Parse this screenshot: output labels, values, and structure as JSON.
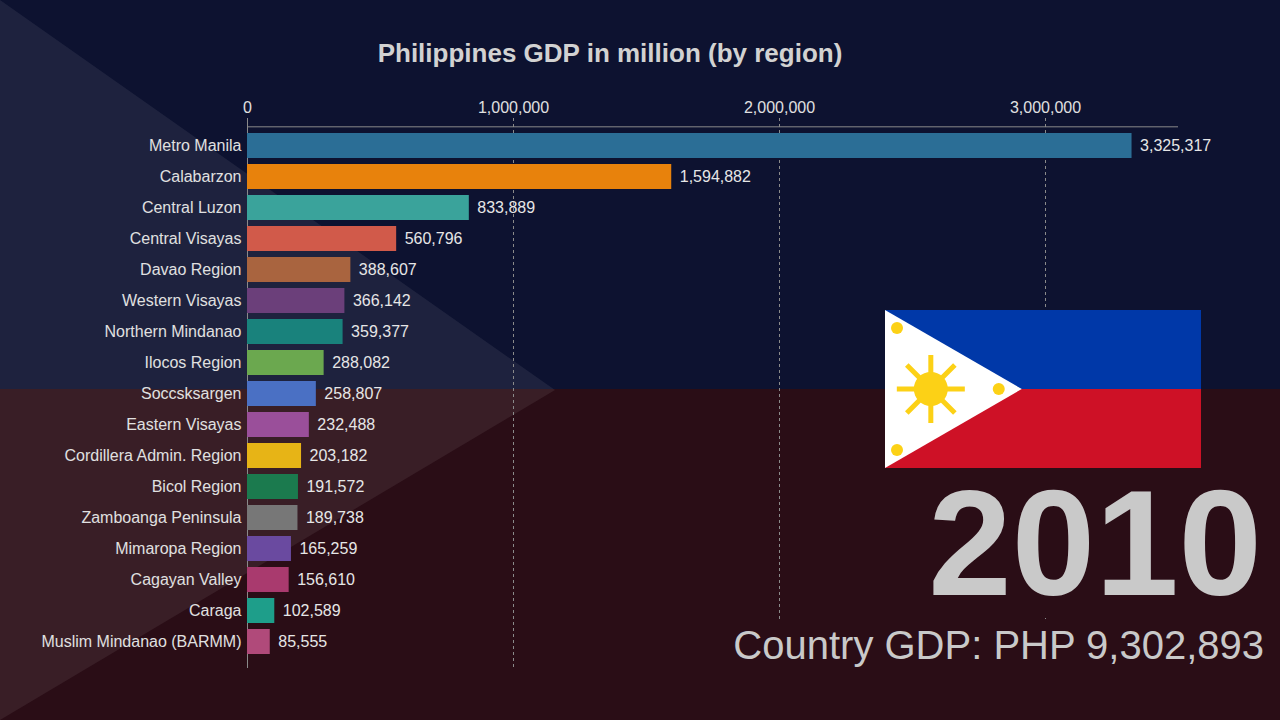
{
  "chart_data": {
    "type": "bar",
    "orientation": "horizontal",
    "title": "Philippines GDP in million (by region)",
    "categories": [
      "Metro Manila",
      "Calabarzon",
      "Central Luzon",
      "Central Visayas",
      "Davao Region",
      "Western Visayas",
      "Northern Mindanao",
      "Ilocos Region",
      "Soccsksargen",
      "Eastern Visayas",
      "Cordillera Admin. Region",
      "Bicol Region",
      "Zamboanga Peninsula",
      "Mimaropa Region",
      "Cagayan Valley",
      "Caraga",
      "Muslim Mindanao (BARMM)"
    ],
    "values": [
      3325317,
      1594882,
      833889,
      560796,
      388607,
      366142,
      359377,
      288082,
      258807,
      232488,
      203182,
      191572,
      189738,
      165259,
      156610,
      102589,
      85555
    ],
    "value_labels": [
      "3,325,317",
      "1,594,882",
      "833,889",
      "560,796",
      "388,607",
      "366,142",
      "359,377",
      "288,082",
      "258,807",
      "232,488",
      "203,182",
      "191,572",
      "189,738",
      "165,259",
      "156,610",
      "102,589",
      "85,555"
    ],
    "colors": [
      "#2b6e96",
      "#e8820c",
      "#3aa39b",
      "#d15a4a",
      "#a9643f",
      "#6b3f7a",
      "#19827c",
      "#6ba84f",
      "#4a70c4",
      "#9a4f9a",
      "#e7b416",
      "#1b7a4e",
      "#777777",
      "#6a4aa0",
      "#a93a6e",
      "#1e9e8a",
      "#b04a7a"
    ],
    "xlim": [
      0,
      3500000
    ],
    "xticks": [
      0,
      {
        "value": 1000000,
        "label": "1,000,000"
      },
      {
        "value": 2000000,
        "label": "2,000,000"
      },
      {
        "value": 3000000,
        "label": "3,000,000"
      }
    ],
    "grid": true,
    "data_labels": true,
    "annotations": [
      "2010",
      "Country GDP: PHP 9,302,893"
    ]
  }
}
